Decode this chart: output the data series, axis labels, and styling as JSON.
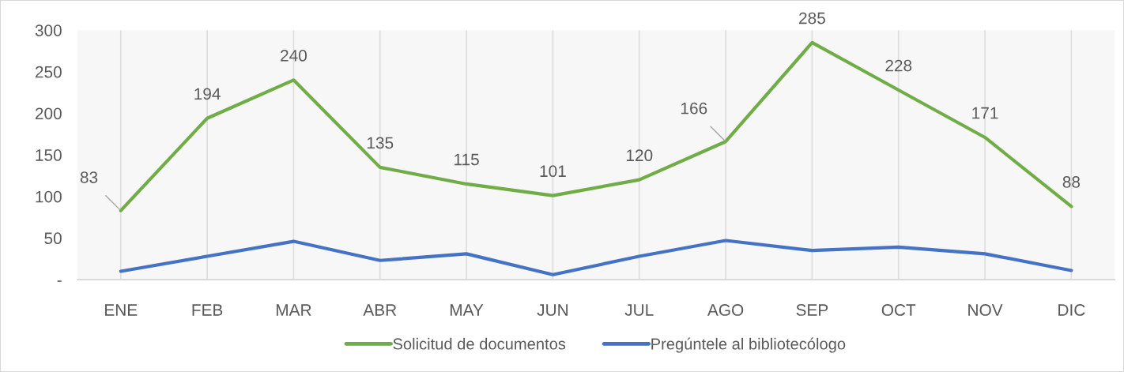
{
  "chart_data": {
    "type": "line",
    "categories": [
      "ENE",
      "FEB",
      "MAR",
      "ABR",
      "MAY",
      "JUN",
      "JUL",
      "AGO",
      "SEP",
      "OCT",
      "NOV",
      "DIC"
    ],
    "series": [
      {
        "name": "Solicitud de documentos",
        "color": "#70ad47",
        "values": [
          83,
          194,
          240,
          135,
          115,
          101,
          120,
          166,
          285,
          228,
          171,
          88
        ],
        "value_labels": [
          "83",
          "194",
          "240",
          "135",
          "115",
          "101",
          "120",
          "166",
          "285",
          "228",
          "171",
          "88"
        ]
      },
      {
        "name": "Pregúntele al bibliotecólogo",
        "color": "#4472c4",
        "values": [
          10,
          28,
          46,
          23,
          31,
          6,
          28,
          47,
          35,
          39,
          31,
          11
        ]
      }
    ],
    "ylim": [
      0,
      300
    ],
    "yticks": [
      {
        "value": 0,
        "label": "-"
      },
      50,
      100,
      150,
      200,
      250,
      300
    ],
    "grid": "x",
    "legend": "bottom"
  }
}
